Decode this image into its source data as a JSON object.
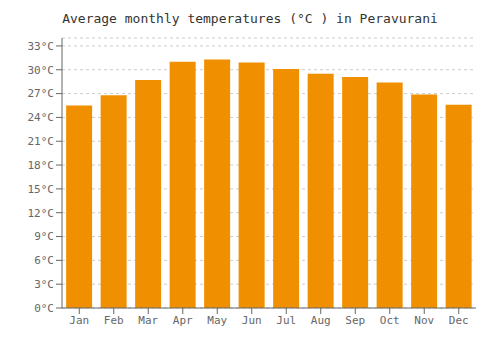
{
  "chart_data": {
    "type": "bar",
    "title": "Average monthly temperatures (°C ) in Peravurani",
    "categories": [
      "Jan",
      "Feb",
      "Mar",
      "Apr",
      "May",
      "Jun",
      "Jul",
      "Aug",
      "Sep",
      "Oct",
      "Nov",
      "Dec"
    ],
    "values": [
      25.5,
      26.8,
      28.7,
      31.0,
      31.3,
      30.9,
      30.1,
      29.5,
      29.1,
      28.4,
      26.9,
      25.6
    ],
    "color": "#F09000",
    "ylim": [
      0,
      34
    ],
    "yticks": [
      {
        "value": 0,
        "label": "0°C"
      },
      {
        "value": 3,
        "label": "3°C"
      },
      {
        "value": 6,
        "label": "6°C"
      },
      {
        "value": 9,
        "label": "9°C"
      },
      {
        "value": 12,
        "label": "12°C"
      },
      {
        "value": 15,
        "label": "15°C"
      },
      {
        "value": 18,
        "label": "18°C"
      },
      {
        "value": 21,
        "label": "21°C"
      },
      {
        "value": 24,
        "label": "24°C"
      },
      {
        "value": 27,
        "label": "27°C"
      },
      {
        "value": 30,
        "label": "30°C"
      },
      {
        "value": 33,
        "label": "33°C"
      }
    ],
    "grid": true
  }
}
